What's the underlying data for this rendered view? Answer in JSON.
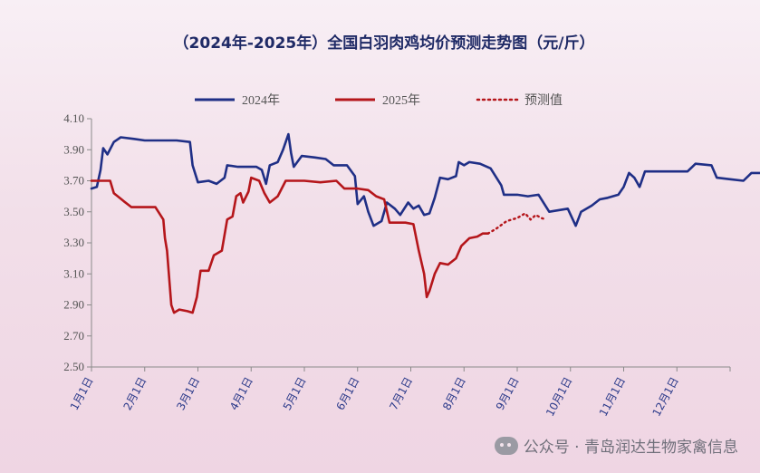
{
  "chart_data": {
    "type": "line",
    "title": "（2024年-2025年）全国白羽肉鸡均价预测走势图（元/斤）",
    "ylim": [
      2.5,
      4.1
    ],
    "yticks": [
      "4.10",
      "3.90",
      "3.70",
      "3.50",
      "3.30",
      "3.10",
      "2.90",
      "2.70",
      "2.50"
    ],
    "x_months": [
      "1月1日",
      "2月1日",
      "3月1日",
      "4月1日",
      "5月1日",
      "6月1日",
      "7月1日",
      "8月1日",
      "9月1日",
      "10月1日",
      "11月1日",
      "12月1日"
    ],
    "legend_position": "top",
    "series": [
      {
        "name": "2024年",
        "color": "#1f2f86",
        "style": "solid",
        "points": [
          [
            0,
            3.65
          ],
          [
            0.1,
            3.66
          ],
          [
            0.17,
            3.77
          ],
          [
            0.22,
            3.91
          ],
          [
            0.3,
            3.87
          ],
          [
            0.42,
            3.95
          ],
          [
            0.55,
            3.98
          ],
          [
            0.8,
            3.97
          ],
          [
            1.0,
            3.96
          ],
          [
            1.3,
            3.96
          ],
          [
            1.6,
            3.96
          ],
          [
            1.85,
            3.95
          ],
          [
            1.9,
            3.8
          ],
          [
            2.0,
            3.69
          ],
          [
            2.2,
            3.7
          ],
          [
            2.35,
            3.68
          ],
          [
            2.5,
            3.72
          ],
          [
            2.55,
            3.8
          ],
          [
            2.75,
            3.79
          ],
          [
            3.1,
            3.79
          ],
          [
            3.2,
            3.77
          ],
          [
            3.28,
            3.68
          ],
          [
            3.35,
            3.8
          ],
          [
            3.5,
            3.82
          ],
          [
            3.6,
            3.9
          ],
          [
            3.7,
            4.0
          ],
          [
            3.75,
            3.88
          ],
          [
            3.8,
            3.79
          ],
          [
            3.95,
            3.86
          ],
          [
            4.2,
            3.85
          ],
          [
            4.4,
            3.84
          ],
          [
            4.55,
            3.8
          ],
          [
            4.8,
            3.8
          ],
          [
            4.95,
            3.73
          ],
          [
            5.0,
            3.55
          ],
          [
            5.12,
            3.6
          ],
          [
            5.2,
            3.5
          ],
          [
            5.3,
            3.41
          ],
          [
            5.45,
            3.44
          ],
          [
            5.55,
            3.56
          ],
          [
            5.7,
            3.52
          ],
          [
            5.8,
            3.48
          ],
          [
            5.95,
            3.56
          ],
          [
            6.05,
            3.52
          ],
          [
            6.15,
            3.54
          ],
          [
            6.25,
            3.48
          ],
          [
            6.35,
            3.49
          ],
          [
            6.45,
            3.59
          ],
          [
            6.55,
            3.72
          ],
          [
            6.7,
            3.71
          ],
          [
            6.85,
            3.73
          ],
          [
            6.9,
            3.82
          ],
          [
            7.0,
            3.8
          ],
          [
            7.1,
            3.82
          ],
          [
            7.3,
            3.81
          ],
          [
            7.5,
            3.78
          ],
          [
            7.7,
            3.67
          ],
          [
            7.75,
            3.61
          ],
          [
            8.0,
            3.61
          ],
          [
            8.2,
            3.6
          ],
          [
            8.4,
            3.61
          ],
          [
            8.6,
            3.5
          ],
          [
            8.95,
            3.52
          ],
          [
            9.1,
            3.41
          ],
          [
            9.2,
            3.5
          ],
          [
            9.4,
            3.54
          ],
          [
            9.55,
            3.58
          ],
          [
            9.7,
            3.59
          ],
          [
            9.9,
            3.61
          ],
          [
            10.0,
            3.66
          ],
          [
            10.1,
            3.75
          ],
          [
            10.2,
            3.72
          ],
          [
            10.3,
            3.66
          ],
          [
            10.4,
            3.76
          ],
          [
            10.8,
            3.76
          ],
          [
            11.2,
            3.76
          ],
          [
            11.35,
            3.81
          ],
          [
            11.65,
            3.8
          ],
          [
            11.75,
            3.72
          ],
          [
            12.0,
            3.71
          ],
          [
            12.25,
            3.7
          ],
          [
            12.4,
            3.75
          ],
          [
            12.85,
            3.75
          ]
        ]
      },
      {
        "name": "2025年",
        "color": "#b5161b",
        "style": "solid",
        "points": [
          [
            0,
            3.7
          ],
          [
            0.2,
            3.7
          ],
          [
            0.35,
            3.7
          ],
          [
            0.42,
            3.62
          ],
          [
            0.6,
            3.57
          ],
          [
            0.75,
            3.53
          ],
          [
            1.0,
            3.53
          ],
          [
            1.2,
            3.53
          ],
          [
            1.35,
            3.45
          ],
          [
            1.38,
            3.33
          ],
          [
            1.42,
            3.25
          ],
          [
            1.5,
            2.9
          ],
          [
            1.55,
            2.85
          ],
          [
            1.65,
            2.87
          ],
          [
            1.8,
            2.86
          ],
          [
            1.9,
            2.85
          ],
          [
            1.98,
            2.95
          ],
          [
            2.05,
            3.12
          ],
          [
            2.2,
            3.12
          ],
          [
            2.3,
            3.22
          ],
          [
            2.45,
            3.25
          ],
          [
            2.55,
            3.45
          ],
          [
            2.65,
            3.47
          ],
          [
            2.72,
            3.6
          ],
          [
            2.8,
            3.62
          ],
          [
            2.85,
            3.56
          ],
          [
            2.95,
            3.63
          ],
          [
            3.0,
            3.72
          ],
          [
            3.15,
            3.7
          ],
          [
            3.25,
            3.62
          ],
          [
            3.35,
            3.56
          ],
          [
            3.5,
            3.6
          ],
          [
            3.65,
            3.7
          ],
          [
            4.0,
            3.7
          ],
          [
            4.3,
            3.69
          ],
          [
            4.6,
            3.7
          ],
          [
            4.75,
            3.65
          ],
          [
            5.0,
            3.65
          ],
          [
            5.2,
            3.64
          ],
          [
            5.35,
            3.6
          ],
          [
            5.5,
            3.58
          ],
          [
            5.6,
            3.43
          ],
          [
            5.9,
            3.43
          ],
          [
            6.05,
            3.42
          ],
          [
            6.15,
            3.25
          ],
          [
            6.25,
            3.1
          ],
          [
            6.3,
            2.95
          ],
          [
            6.35,
            2.99
          ],
          [
            6.45,
            3.1
          ],
          [
            6.55,
            3.17
          ],
          [
            6.7,
            3.16
          ],
          [
            6.85,
            3.2
          ],
          [
            6.95,
            3.28
          ],
          [
            7.1,
            3.33
          ],
          [
            7.25,
            3.34
          ],
          [
            7.35,
            3.36
          ],
          [
            7.45,
            3.36
          ]
        ]
      },
      {
        "name": "预测值",
        "color": "#b5161b",
        "style": "dotted",
        "points": [
          [
            7.45,
            3.36
          ],
          [
            7.6,
            3.39
          ],
          [
            7.8,
            3.44
          ],
          [
            8.0,
            3.46
          ],
          [
            8.15,
            3.49
          ],
          [
            8.25,
            3.45
          ],
          [
            8.35,
            3.48
          ],
          [
            8.45,
            3.46
          ],
          [
            8.55,
            3.45
          ]
        ]
      }
    ]
  },
  "watermark": {
    "text": "公众号 · 青岛润达生物家禽信息",
    "icon": "wechat-icon"
  }
}
